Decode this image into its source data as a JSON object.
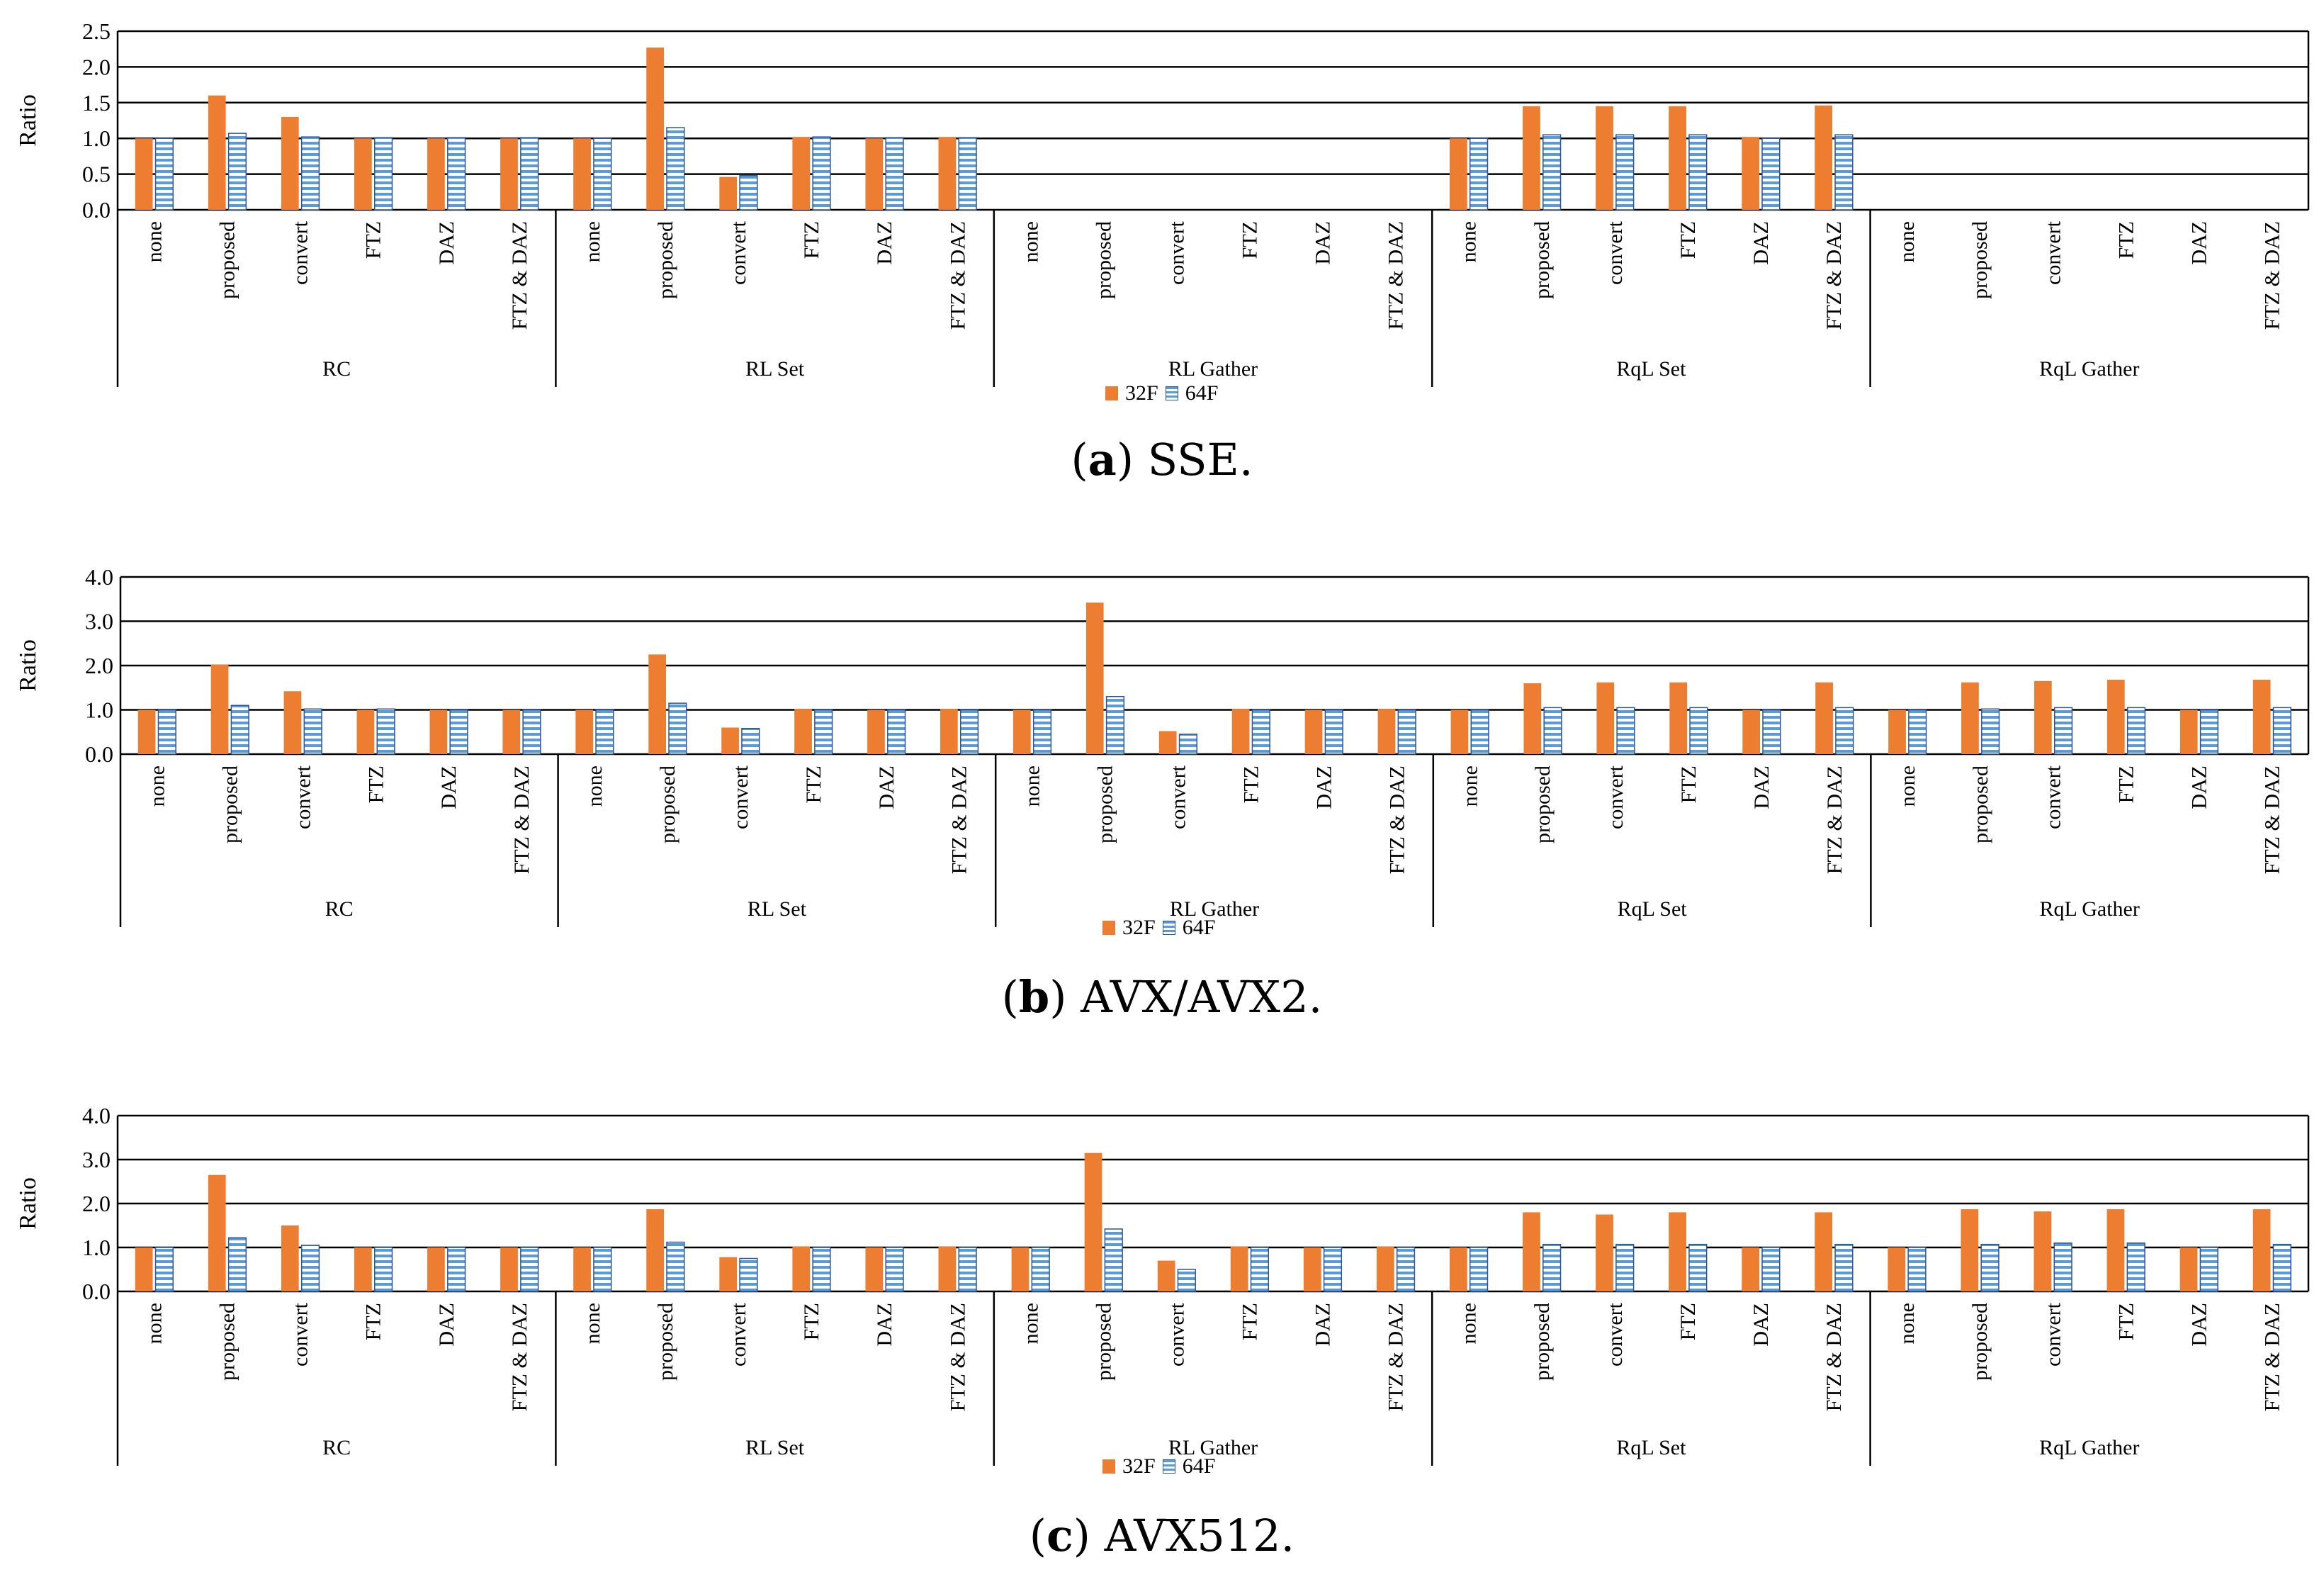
{
  "legend": {
    "s32": "32F",
    "s64": "64F"
  },
  "colors": {
    "s32": "#ED7D31",
    "s64": "#5B9BD5",
    "s64_stroke": "#2F5597",
    "grid": "#000000"
  },
  "captions": [
    {
      "letter": "a",
      "text": "SSE."
    },
    {
      "letter": "b",
      "text": "AVX/AVX2."
    },
    {
      "letter": "c",
      "text": "AVX512."
    }
  ],
  "chart_data": [
    {
      "type": "bar",
      "title": "(a) SSE.",
      "ylabel": "Ratio",
      "ylim": [
        0,
        2.5
      ],
      "yticks": [
        "0.0",
        "0.5",
        "1.0",
        "1.5",
        "2.0",
        "2.5"
      ],
      "grid": true,
      "groups": [
        "RC",
        "RL Set",
        "RL Gather",
        "RqL Set",
        "RqL Gather"
      ],
      "categories": [
        "none",
        "proposed",
        "convert",
        "FTZ",
        "DAZ",
        "FTZ & DAZ"
      ],
      "series": [
        {
          "name": "32F",
          "values": [
            [
              1.0,
              1.6,
              1.3,
              1.0,
              1.0,
              1.0
            ],
            [
              1.0,
              2.27,
              0.46,
              1.02,
              1.0,
              1.02
            ],
            [
              null,
              null,
              null,
              null,
              null,
              null
            ],
            [
              1.0,
              1.45,
              1.45,
              1.45,
              1.02,
              1.46
            ],
            [
              null,
              null,
              null,
              null,
              null,
              null
            ]
          ]
        },
        {
          "name": "64F",
          "values": [
            [
              1.0,
              1.07,
              1.02,
              1.01,
              1.01,
              1.01
            ],
            [
              1.0,
              1.15,
              0.48,
              1.02,
              1.01,
              1.01
            ],
            [
              null,
              null,
              null,
              null,
              null,
              null
            ],
            [
              1.0,
              1.05,
              1.05,
              1.05,
              1.0,
              1.05
            ],
            [
              null,
              null,
              null,
              null,
              null,
              null
            ]
          ]
        }
      ]
    },
    {
      "type": "bar",
      "title": "(b) AVX/AVX2.",
      "ylabel": "Ratio",
      "ylim": [
        0,
        4.0
      ],
      "yticks": [
        "0.0",
        "1.0",
        "2.0",
        "3.0",
        "4.0"
      ],
      "grid": true,
      "groups": [
        "RC",
        "RL Set",
        "RL Gather",
        "RqL Set",
        "RqL Gather"
      ],
      "categories": [
        "none",
        "proposed",
        "convert",
        "FTZ",
        "DAZ",
        "FTZ & DAZ"
      ],
      "series": [
        {
          "name": "32F",
          "values": [
            [
              1.0,
              2.02,
              1.42,
              1.0,
              1.0,
              1.0
            ],
            [
              1.0,
              2.25,
              0.6,
              1.02,
              1.0,
              1.02
            ],
            [
              1.0,
              3.42,
              0.52,
              1.02,
              1.0,
              1.02
            ],
            [
              1.0,
              1.6,
              1.62,
              1.62,
              1.0,
              1.62
            ],
            [
              1.0,
              1.62,
              1.65,
              1.68,
              1.0,
              1.68
            ]
          ]
        },
        {
          "name": "64F",
          "values": [
            [
              1.0,
              1.1,
              1.02,
              1.02,
              1.0,
              1.0
            ],
            [
              1.0,
              1.15,
              0.58,
              1.0,
              1.0,
              1.0
            ],
            [
              1.0,
              1.3,
              0.45,
              1.0,
              1.0,
              1.0
            ],
            [
              1.0,
              1.05,
              1.05,
              1.05,
              1.0,
              1.05
            ],
            [
              1.0,
              1.02,
              1.05,
              1.05,
              1.0,
              1.05
            ]
          ]
        }
      ]
    },
    {
      "type": "bar",
      "title": "(c) AVX512.",
      "ylabel": "Ratio",
      "ylim": [
        0,
        4.0
      ],
      "yticks": [
        "0.0",
        "1.0",
        "2.0",
        "3.0",
        "4.0"
      ],
      "grid": true,
      "groups": [
        "RC",
        "RL Set",
        "RL Gather",
        "RqL Set",
        "RqL Gather"
      ],
      "categories": [
        "none",
        "proposed",
        "convert",
        "FTZ",
        "DAZ",
        "FTZ & DAZ"
      ],
      "series": [
        {
          "name": "32F",
          "values": [
            [
              1.0,
              2.65,
              1.5,
              1.0,
              1.0,
              1.0
            ],
            [
              1.0,
              1.87,
              0.78,
              1.02,
              1.0,
              1.02
            ],
            [
              1.0,
              3.15,
              0.7,
              1.02,
              1.0,
              1.02
            ],
            [
              1.0,
              1.8,
              1.75,
              1.8,
              1.0,
              1.8
            ],
            [
              1.0,
              1.87,
              1.82,
              1.87,
              1.0,
              1.87
            ]
          ]
        },
        {
          "name": "64F",
          "values": [
            [
              1.0,
              1.22,
              1.05,
              1.0,
              1.0,
              1.0
            ],
            [
              1.0,
              1.12,
              0.75,
              1.0,
              1.0,
              1.0
            ],
            [
              1.0,
              1.42,
              0.5,
              1.0,
              1.0,
              1.0
            ],
            [
              1.0,
              1.07,
              1.07,
              1.07,
              1.0,
              1.07
            ],
            [
              1.0,
              1.07,
              1.1,
              1.1,
              1.0,
              1.07
            ]
          ]
        }
      ]
    }
  ]
}
